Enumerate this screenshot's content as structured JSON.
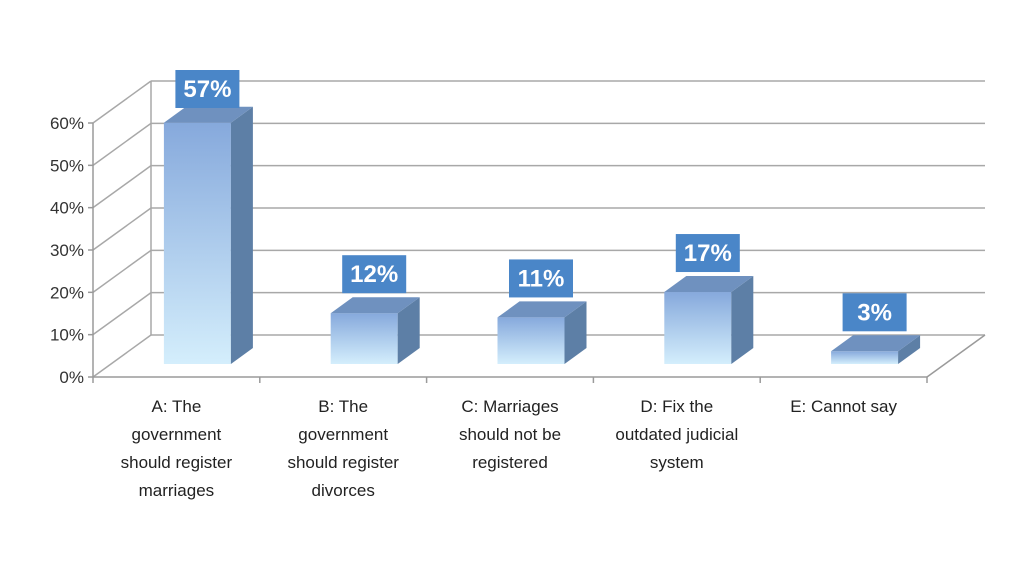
{
  "chart_data": {
    "type": "bar",
    "title": "",
    "xlabel": "",
    "ylabel": "",
    "ylim": [
      0,
      60
    ],
    "yticks": [
      "0%",
      "10%",
      "20%",
      "30%",
      "40%",
      "50%",
      "60%"
    ],
    "grid": true,
    "legend": "none",
    "categories": [
      "A: The government should register marriages",
      "B: The government should register divorces",
      "C: Marriages should not be registered",
      "D: Fix the outdated judicial system",
      "E: Cannot say"
    ],
    "category_lines": [
      [
        "A: The",
        "government",
        "should register",
        "marriages"
      ],
      [
        "B: The",
        "government",
        "should register",
        "divorces"
      ],
      [
        "C: Marriages",
        "should not be",
        "registered"
      ],
      [
        "D: Fix the",
        "outdated judicial",
        "system"
      ],
      [
        "E: Cannot say"
      ]
    ],
    "values": [
      57,
      12,
      11,
      17,
      3
    ],
    "data_labels": [
      "57%",
      "12%",
      "11%",
      "17%",
      "3%"
    ],
    "colors": {
      "bar_light": "#d4eefc",
      "bar_dark": "#86a9dc",
      "bar_side": "#5d7fa6",
      "bar_top": "#6f91bf",
      "label_box": "#4a86c8",
      "grid": "#a8a8a8",
      "axis": "#9a9a9a"
    }
  }
}
